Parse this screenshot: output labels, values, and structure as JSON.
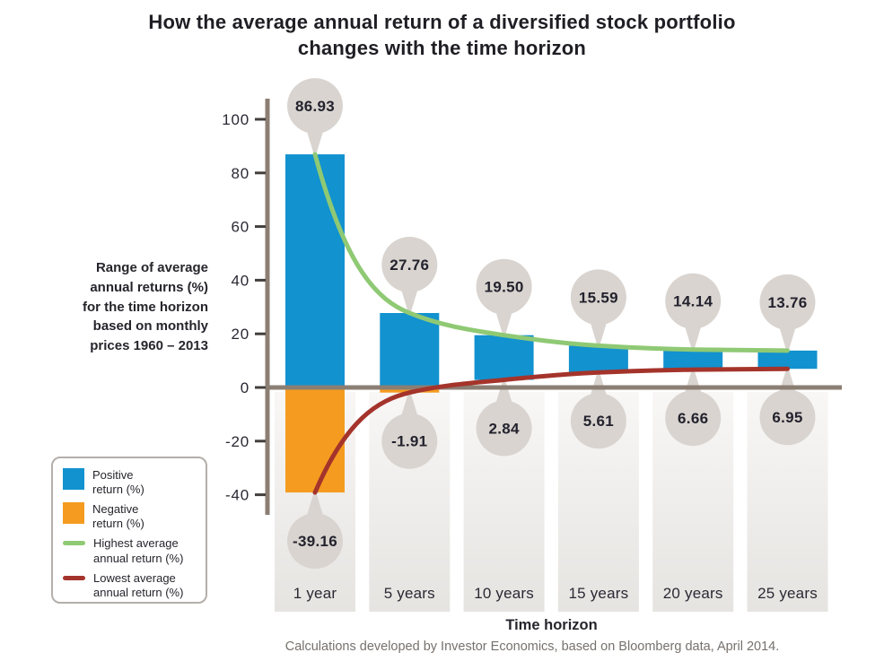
{
  "header": {
    "title_line1": "How the average annual return of a diversified stock portfolio",
    "title_line2": "changes with the time horizon"
  },
  "side_label": "Range of average\nannual returns (%)\nfor the time horizon\nbased on monthly\nprices 1960 – 2013",
  "legend": {
    "items": [
      {
        "label": "Positive\nreturn (%)",
        "type": "square",
        "color": "#1292cf"
      },
      {
        "label": "Negative\nreturn (%)",
        "type": "square",
        "color": "#f59c20"
      },
      {
        "label": "Highest average\nannual return (%)",
        "type": "line",
        "color": "#8fc974"
      },
      {
        "label": "Lowest average\nannual return (%)",
        "type": "line",
        "color": "#a4342b"
      }
    ]
  },
  "chart_data": {
    "type": "bar",
    "title": "How the average annual return of a diversified stock portfolio changes with the time horizon",
    "categories": [
      "1 year",
      "5 years",
      "10 years",
      "15 years",
      "20 years",
      "25 years"
    ],
    "series": [
      {
        "name": "Highest average annual return (%)",
        "type": "line",
        "color": "#8fc974",
        "values": [
          86.93,
          27.76,
          19.5,
          15.59,
          14.14,
          13.76
        ],
        "labels": [
          "86.93",
          "27.76",
          "19.50",
          "15.59",
          "14.14",
          "13.76"
        ]
      },
      {
        "name": "Lowest average annual return (%)",
        "type": "line",
        "color": "#a4342b",
        "values": [
          -39.16,
          -1.91,
          2.84,
          5.61,
          6.66,
          6.95
        ],
        "labels": [
          "-39.16",
          "-1.91",
          "2.84",
          "5.61",
          "6.66",
          "6.95"
        ]
      }
    ],
    "bar_meaning": "bars span from lowest to highest average annual return; blue above 0, orange below 0",
    "positive_color": "#1292cf",
    "negative_color": "#f59c20",
    "axis_color": "#8b7e73",
    "bubble_color": "#d9d4cf",
    "xlabel": "Time horizon",
    "ylabel": "Range of average annual returns (%) for the time horizon based on monthly prices 1960 – 2013",
    "yticks": [
      100,
      80,
      60,
      40,
      20,
      0,
      -20,
      -40
    ],
    "ylim": [
      -55,
      108
    ],
    "grid": false,
    "legend_position": "lower left",
    "footnote": "Calculations developed by Investor Economics, based on Bloomberg data, April 2014."
  }
}
